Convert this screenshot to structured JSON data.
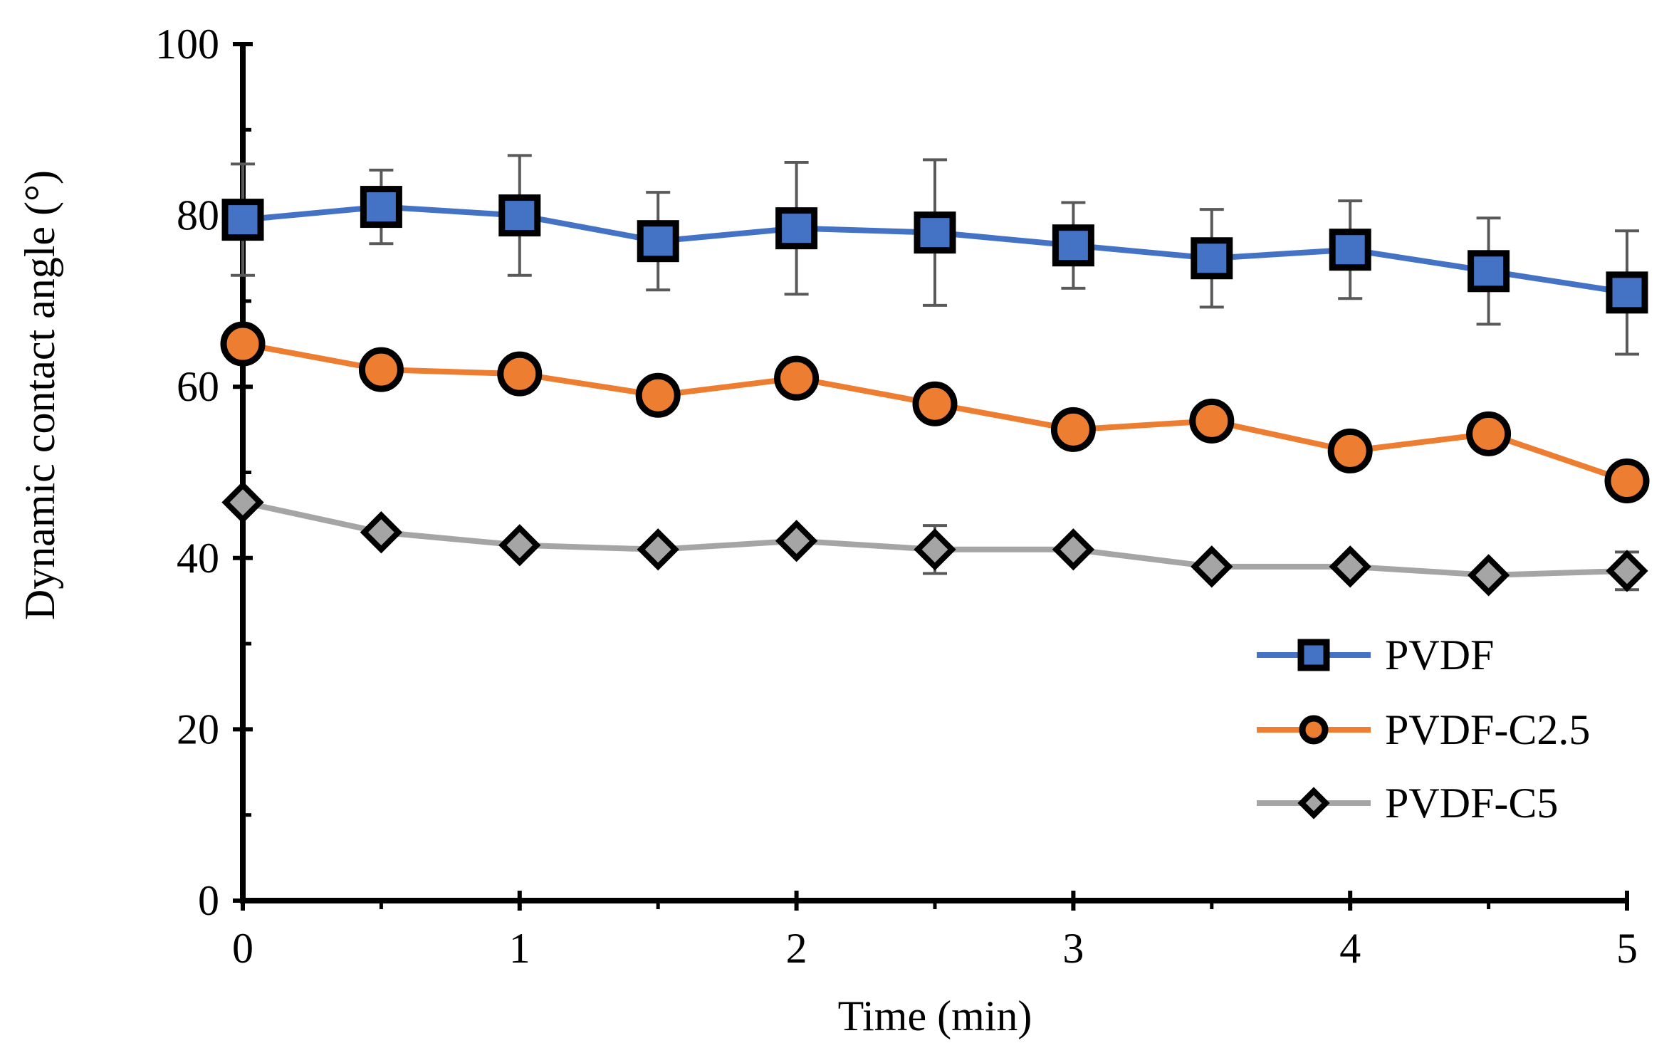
{
  "chart_data": {
    "type": "line",
    "title": "",
    "xlabel": "Time (min)",
    "ylabel": "Dynamic contact angle (°)",
    "xlim": [
      0,
      5
    ],
    "ylim": [
      0,
      100
    ],
    "x_ticks": [
      0,
      1,
      2,
      3,
      4,
      5
    ],
    "x_tick_labels": [
      "0",
      "1",
      "2",
      "3",
      "4",
      "5"
    ],
    "y_ticks": [
      0,
      20,
      40,
      60,
      80,
      100
    ],
    "y_tick_labels": [
      "0",
      "20",
      "40",
      "60",
      "80",
      "100"
    ],
    "grid": false,
    "legend_position": "bottom-right",
    "x": [
      0,
      0.5,
      1,
      1.5,
      2,
      2.5,
      3,
      3.5,
      4,
      4.5,
      5
    ],
    "series": [
      {
        "name": "PVDF",
        "marker": "square",
        "color": "#4472C4",
        "values": [
          79.5,
          81,
          80,
          77,
          78.5,
          78,
          76.5,
          75,
          76,
          73.5,
          71
        ],
        "error": [
          6.5,
          4.3,
          7,
          5.7,
          7.7,
          8.5,
          5,
          5.7,
          5.7,
          6.2,
          7.2
        ]
      },
      {
        "name": "PVDF-C2.5",
        "marker": "circle",
        "color": "#ED7D31",
        "values": [
          65,
          62,
          61.5,
          59,
          61,
          58,
          55,
          56,
          52.5,
          54.5,
          49
        ]
      },
      {
        "name": "PVDF-C5",
        "marker": "diamond",
        "color": "#A5A5A5",
        "values": [
          46.5,
          43,
          41.5,
          41,
          42,
          41,
          41,
          39,
          39,
          38,
          38.5
        ],
        "error": [
          0,
          0,
          0,
          0,
          0,
          2.8,
          0,
          0,
          0,
          0,
          2.2
        ]
      }
    ]
  }
}
